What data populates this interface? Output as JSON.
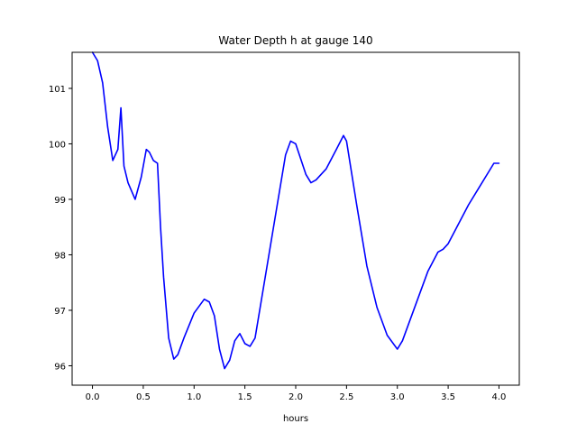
{
  "chart_data": {
    "type": "line",
    "title": "Water Depth h at gauge 140",
    "xlabel": "hours",
    "ylabel": "",
    "xlim": [
      -0.2,
      4.2
    ],
    "ylim": [
      95.65,
      101.65
    ],
    "grid": false,
    "legend": "none",
    "x_ticks": [
      0.0,
      0.5,
      1.0,
      1.5,
      2.0,
      2.5,
      3.0,
      3.5,
      4.0
    ],
    "x_tick_labels": [
      "0.0",
      "0.5",
      "1.0",
      "1.5",
      "2.0",
      "2.5",
      "3.0",
      "3.5",
      "4.0"
    ],
    "y_ticks": [
      96,
      97,
      98,
      99,
      100,
      101
    ],
    "y_tick_labels": [
      "96",
      "97",
      "98",
      "99",
      "100",
      "101"
    ],
    "series": [
      {
        "color": "#0000ff",
        "x": [
          0.0,
          0.05,
          0.1,
          0.15,
          0.2,
          0.25,
          0.28,
          0.31,
          0.35,
          0.42,
          0.48,
          0.53,
          0.56,
          0.6,
          0.64,
          0.67,
          0.7,
          0.75,
          0.8,
          0.84,
          0.9,
          1.0,
          1.1,
          1.15,
          1.2,
          1.25,
          1.3,
          1.35,
          1.4,
          1.45,
          1.5,
          1.55,
          1.6,
          1.7,
          1.8,
          1.9,
          1.95,
          2.0,
          2.1,
          2.15,
          2.2,
          2.3,
          2.4,
          2.47,
          2.5,
          2.6,
          2.7,
          2.8,
          2.9,
          3.0,
          3.05,
          3.1,
          3.2,
          3.3,
          3.4,
          3.45,
          3.5,
          3.6,
          3.7,
          3.8,
          3.9,
          3.95,
          4.0
        ],
        "y": [
          101.65,
          101.5,
          101.1,
          100.3,
          99.7,
          99.9,
          100.65,
          99.6,
          99.3,
          99.0,
          99.4,
          99.9,
          99.85,
          99.7,
          99.65,
          98.5,
          97.6,
          96.5,
          96.12,
          96.2,
          96.5,
          96.95,
          97.2,
          97.15,
          96.9,
          96.3,
          95.95,
          96.1,
          96.45,
          96.58,
          96.4,
          96.35,
          96.5,
          97.6,
          98.7,
          99.8,
          100.05,
          100.0,
          99.45,
          99.3,
          99.35,
          99.55,
          99.9,
          100.15,
          100.05,
          98.9,
          97.8,
          97.05,
          96.55,
          96.3,
          96.45,
          96.7,
          97.2,
          97.7,
          98.05,
          98.1,
          98.2,
          98.55,
          98.9,
          99.2,
          99.5,
          99.65,
          99.65
        ]
      }
    ]
  }
}
